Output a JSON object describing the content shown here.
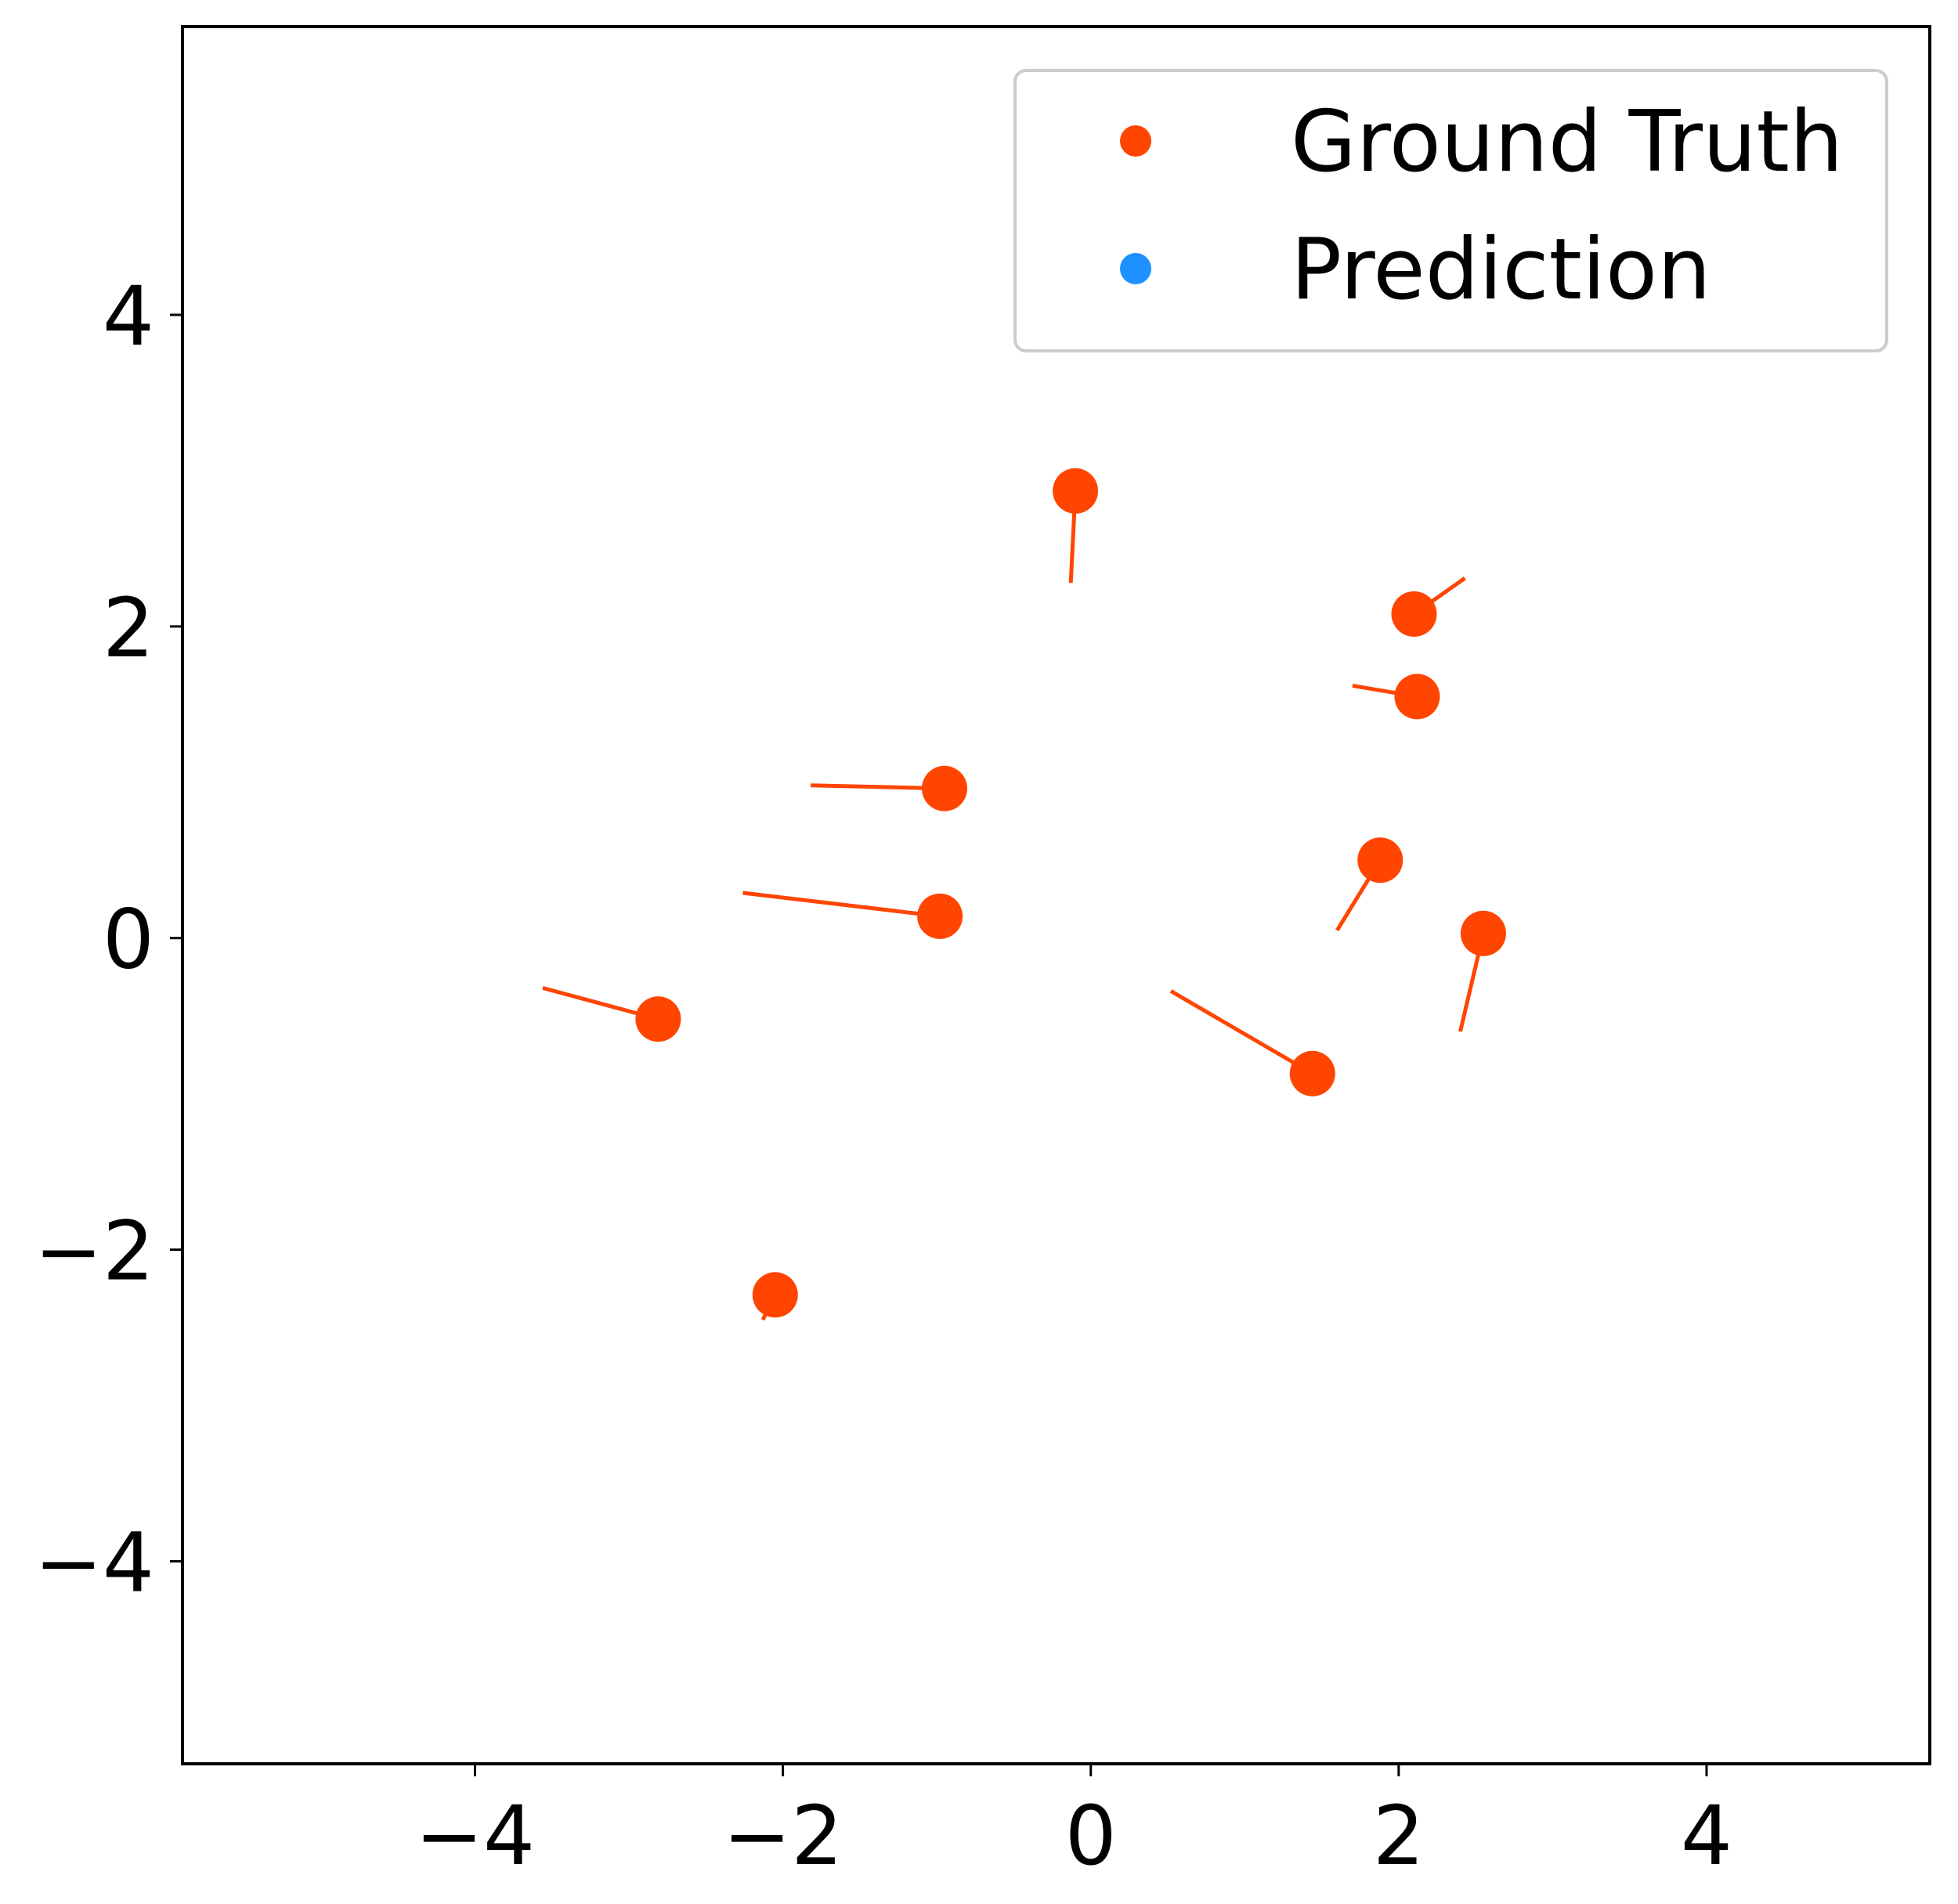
{
  "chart_data": {
    "type": "scatter",
    "title": "",
    "xlabel": "",
    "ylabel": "",
    "xlim": [
      -5.9,
      5.45
    ],
    "ylim": [
      -5.3,
      5.85
    ],
    "xticks": [
      -4,
      -2,
      0,
      2,
      4
    ],
    "xtick_labels": [
      "−4",
      "−2",
      "0",
      "2",
      "4"
    ],
    "yticks": [
      -4,
      -2,
      0,
      2,
      4
    ],
    "ytick_labels": [
      "−4",
      "−2",
      "0",
      "2",
      "4"
    ],
    "grid": false,
    "legend": {
      "placement": "top-right"
    },
    "series": [
      {
        "name": "Ground Truth",
        "color": "#ff4500",
        "points": [
          {
            "x": -0.1,
            "y": 2.87,
            "tail": [
              -0.13,
              2.28
            ]
          },
          {
            "x": 2.1,
            "y": 2.08,
            "tail": [
              2.43,
              2.31
            ]
          },
          {
            "x": 2.12,
            "y": 1.55,
            "tail": [
              1.7,
              1.62
            ]
          },
          {
            "x": -0.95,
            "y": 0.96,
            "tail": [
              -1.82,
              0.98
            ]
          },
          {
            "x": -0.98,
            "y": 0.14,
            "tail": [
              -2.26,
              0.29
            ]
          },
          {
            "x": 1.88,
            "y": 0.5,
            "tail": [
              1.6,
              0.05
            ]
          },
          {
            "x": 2.55,
            "y": 0.03,
            "tail": [
              2.4,
              -0.6
            ]
          },
          {
            "x": -2.81,
            "y": -0.52,
            "tail": [
              -3.56,
              -0.32
            ]
          },
          {
            "x": 1.44,
            "y": -0.87,
            "tail": [
              0.52,
              -0.34
            ]
          },
          {
            "x": -2.05,
            "y": -2.29,
            "tail": [
              -2.13,
              -2.45
            ]
          }
        ]
      },
      {
        "name": "Prediction",
        "color": "#1e90ff",
        "points": []
      }
    ]
  }
}
